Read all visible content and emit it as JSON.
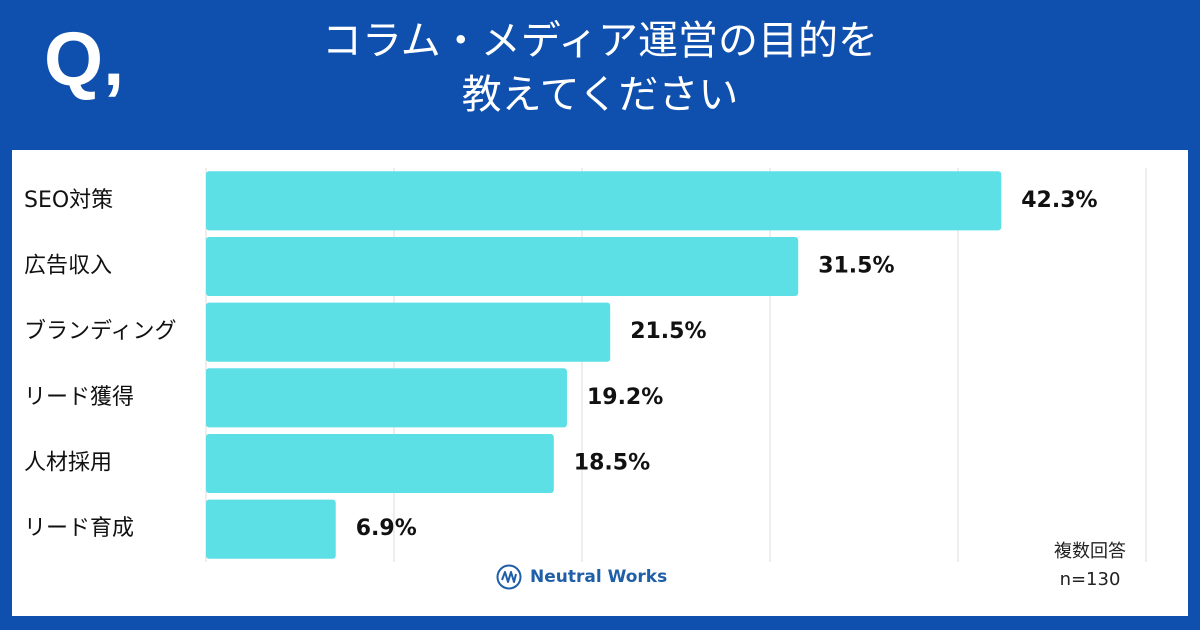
{
  "header": {
    "q_mark": "Q,",
    "title_line1": "コラム・メディア運営の目的を",
    "title_line2": "教えてください"
  },
  "notes": {
    "multiple": "複数回答",
    "n": "n=130"
  },
  "brand": {
    "name": "Neutral Works",
    "icon": "neutral-works-logo-icon"
  },
  "colors": {
    "header_bg": "#0f4fad",
    "bar": "#5ddfe6",
    "grid": "#dcdcdc"
  },
  "chart_data": {
    "type": "bar",
    "orientation": "horizontal",
    "categories": [
      "SEO対策",
      "広告収入",
      "ブランディング",
      "リード獲得",
      "人材採用",
      "リード育成"
    ],
    "values": [
      42.3,
      31.5,
      21.5,
      19.2,
      18.5,
      6.9
    ],
    "value_labels": [
      "42.3%",
      "31.5%",
      "21.5%",
      "19.2%",
      "18.5%",
      "6.9%"
    ],
    "xlim": [
      0,
      50
    ],
    "grid": true
  }
}
